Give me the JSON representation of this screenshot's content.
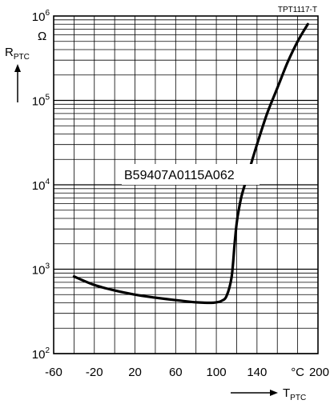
{
  "chart_data": {
    "type": "line",
    "doc_id": "TPT1117-T",
    "series": [
      {
        "name": "B59407A0115A062",
        "x": [
          -40,
          -20,
          0,
          20,
          40,
          60,
          80,
          95,
          100,
          105,
          110,
          115,
          118,
          120,
          122,
          125,
          130,
          140,
          150,
          160,
          170,
          180,
          190
        ],
        "y": [
          820,
          650,
          560,
          500,
          460,
          430,
          405,
          400,
          405,
          420,
          480,
          800,
          2000,
          3500,
          5000,
          7500,
          12000,
          30000,
          70000,
          140000,
          280000,
          500000,
          800000
        ]
      }
    ],
    "y_axis": {
      "unit": "Ω",
      "symbol_main": "R",
      "symbol_sub": "PTC",
      "scale": "log",
      "ylim": [
        100,
        1000000
      ],
      "ticks": [
        {
          "value": 100,
          "base": "10",
          "exp": "2"
        },
        {
          "value": 1000,
          "base": "10",
          "exp": "3"
        },
        {
          "value": 10000,
          "base": "10",
          "exp": "4"
        },
        {
          "value": 100000,
          "base": "10",
          "exp": "5"
        },
        {
          "value": 1000000,
          "base": "10",
          "exp": "6"
        }
      ]
    },
    "x_axis": {
      "symbol_main": "T",
      "symbol_sub": "PTC",
      "xlim": [
        -60,
        200
      ],
      "ticks": [
        {
          "value": -60,
          "label": "-60"
        },
        {
          "value": -20,
          "label": "-20"
        },
        {
          "value": 20,
          "label": "20"
        },
        {
          "value": 60,
          "label": "60"
        },
        {
          "value": 100,
          "label": "100"
        },
        {
          "value": 140,
          "label": "140"
        },
        {
          "value": 200,
          "label": "200"
        }
      ],
      "unit_label": "°C",
      "unit_label_at": 180
    },
    "grid": true
  }
}
